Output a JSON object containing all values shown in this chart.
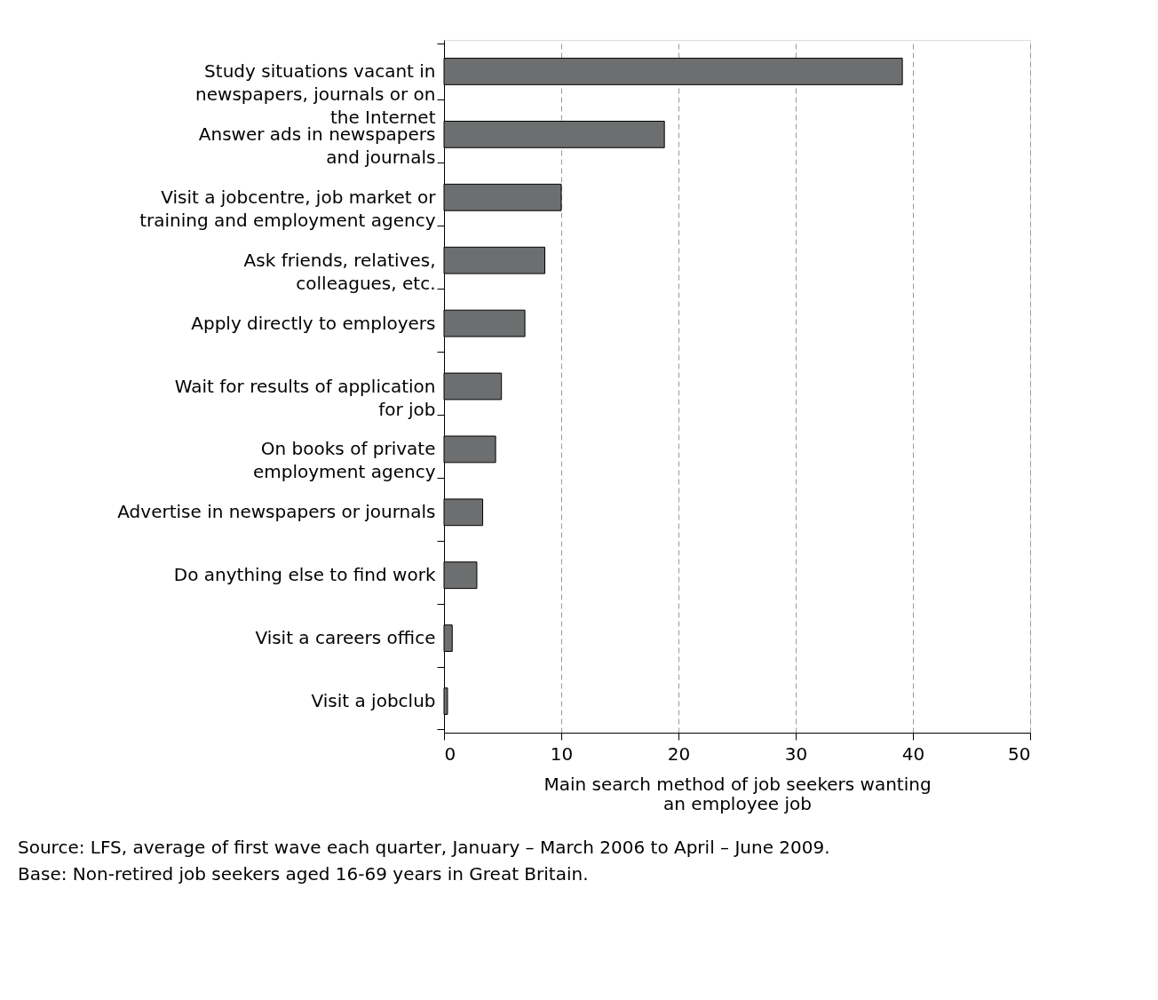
{
  "chart_data": {
    "type": "bar",
    "orientation": "horizontal",
    "xlabel": "Main search method of job seekers wanting\nan employee job",
    "categories": [
      "Study situations vacant in\nnewspapers, journals or on\nthe Internet",
      "Answer ads in newspapers\nand journals",
      "Visit a jobcentre, job market or\ntraining and employment agency",
      "Ask friends, relatives,\ncolleagues, etc.",
      "Apply directly to employers",
      "Wait for results of application\nfor job",
      "On books of private\nemployment agency",
      "Advertise in newspapers or journals",
      "Do anything else to find work",
      "Visit a careers office",
      "Visit a jobclub"
    ],
    "values": [
      39.1,
      18.8,
      10.0,
      8.6,
      6.9,
      4.9,
      4.4,
      3.3,
      2.8,
      0.7,
      0.3
    ],
    "color": "#6d6e70",
    "xlim": [
      0,
      50
    ],
    "xticks": [
      0,
      10,
      20,
      30,
      40,
      50
    ],
    "grid": "x",
    "annotations": [
      "Source: LFS, average of first wave each quarter, January – March 2006 to April – June 2009.",
      "Base: Non-retired job seekers aged 16-69 years in Great Britain."
    ]
  }
}
